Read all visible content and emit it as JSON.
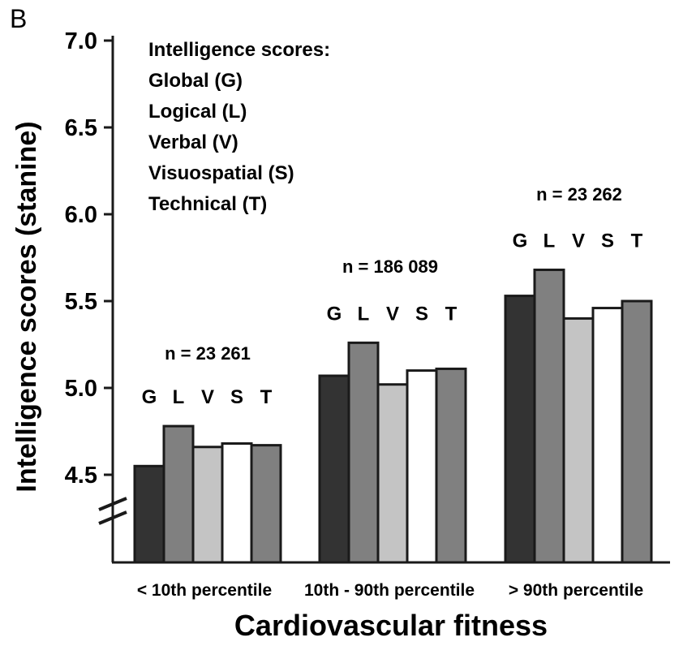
{
  "chart_data": {
    "type": "bar",
    "panel_label": "B",
    "title": "",
    "xlabel": "Cardiovascular fitness",
    "ylabel": "Intelligence scores (stanine)",
    "ylim": [
      4.0,
      7.0
    ],
    "yticks": [
      "4.5",
      "5.0",
      "5.5",
      "6.0",
      "6.5",
      "7.0"
    ],
    "axis_break": true,
    "grid": false,
    "categories": [
      "< 10th percentile",
      "10th - 90th percentile",
      "> 90th percentile"
    ],
    "n_labels": [
      "n = 23 261",
      "n = 186 089",
      "n = 23 262"
    ],
    "series": [
      {
        "name": "G",
        "color": "#333333",
        "values": [
          4.55,
          5.07,
          5.53
        ]
      },
      {
        "name": "L",
        "color": "#808080",
        "values": [
          4.78,
          5.26,
          5.68
        ]
      },
      {
        "name": "V",
        "color": "#c4c4c4",
        "values": [
          4.66,
          5.02,
          5.4
        ]
      },
      {
        "name": "S",
        "color": "#ffffff",
        "values": [
          4.68,
          5.1,
          5.46
        ]
      },
      {
        "name": "T",
        "color": "#808080",
        "values": [
          4.67,
          5.11,
          5.5
        ]
      }
    ],
    "legend": {
      "title": "Intelligence scores:",
      "entries": [
        "Global (G)",
        "Logical (L)",
        "Verbal (V)",
        "Visuospatial (S)",
        "Technical (T)"
      ],
      "position": "top-left"
    }
  }
}
